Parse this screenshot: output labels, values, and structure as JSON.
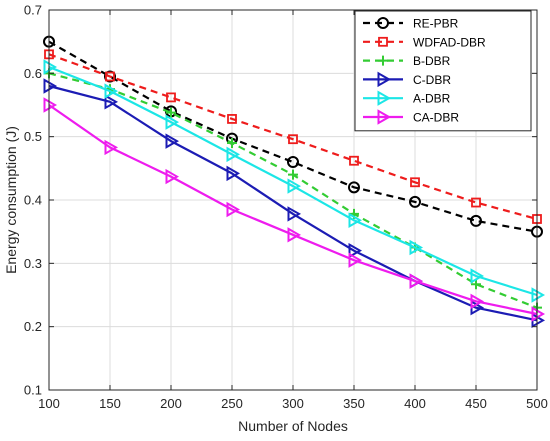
{
  "chart_data": {
    "type": "line",
    "title": "",
    "xlabel": "Number of Nodes",
    "ylabel": "Energy consumption (J)",
    "x": [
      100,
      150,
      200,
      250,
      300,
      350,
      400,
      450,
      500
    ],
    "xlim": [
      100,
      500
    ],
    "ylim": [
      0.1,
      0.7
    ],
    "xticks": [
      "100",
      "150",
      "200",
      "250",
      "300",
      "350",
      "400",
      "450",
      "500"
    ],
    "yticks": [
      "0.1",
      "0.2",
      "0.3",
      "0.4",
      "0.5",
      "0.6",
      "0.7"
    ],
    "grid": true,
    "legend_position": "top-right",
    "series": [
      {
        "name": "RE-PBR",
        "color": "#000000",
        "marker": "circle",
        "dashed": true,
        "values": [
          0.65,
          0.595,
          0.54,
          0.497,
          0.46,
          0.42,
          0.397,
          0.367,
          0.35
        ]
      },
      {
        "name": "WDFAD-DBR",
        "color": "#ee1c1c",
        "marker": "square",
        "dashed": true,
        "values": [
          0.63,
          0.595,
          0.562,
          0.528,
          0.496,
          0.462,
          0.428,
          0.396,
          0.37
        ]
      },
      {
        "name": "B-DBR",
        "color": "#33cc33",
        "marker": "plus",
        "dashed": true,
        "values": [
          0.6,
          0.575,
          0.538,
          0.49,
          0.44,
          0.378,
          0.325,
          0.267,
          0.23
        ]
      },
      {
        "name": "C-DBR",
        "color": "#1c1cb4",
        "marker": "triangle-right",
        "dashed": false,
        "values": [
          0.58,
          0.555,
          0.493,
          0.442,
          0.378,
          0.32,
          0.272,
          0.23,
          0.21
        ]
      },
      {
        "name": "A-DBR",
        "color": "#1ce6e6",
        "marker": "triangle-right",
        "dashed": false,
        "values": [
          0.61,
          0.572,
          0.523,
          0.472,
          0.422,
          0.368,
          0.325,
          0.28,
          0.25
        ]
      },
      {
        "name": "CA-DBR",
        "color": "#ee1cee",
        "marker": "triangle-right",
        "dashed": false,
        "values": [
          0.55,
          0.483,
          0.437,
          0.385,
          0.345,
          0.305,
          0.272,
          0.24,
          0.22
        ]
      }
    ]
  }
}
